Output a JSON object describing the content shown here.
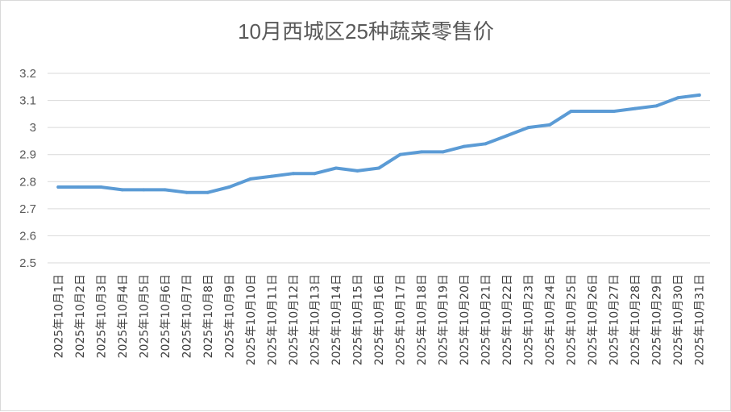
{
  "chart_data": {
    "type": "line",
    "title": "10月西城区25种蔬菜零售价",
    "xlabel": "",
    "ylabel": "",
    "ylim": [
      2.5,
      3.2
    ],
    "yticks": [
      "2.5",
      "2.6",
      "2.7",
      "2.8",
      "2.9",
      "3",
      "3.1",
      "3.2"
    ],
    "grid": true,
    "legend": "none",
    "categories": [
      "2025年10月1日",
      "2025年10月2日",
      "2025年10月3日",
      "2025年10月4日",
      "2025年10月5日",
      "2025年10月6日",
      "2025年10月7日",
      "2025年10月8日",
      "2025年10月9日",
      "2025年10月10日",
      "2025年10月11日",
      "2025年10月12日",
      "2025年10月13日",
      "2025年10月14日",
      "2025年10月15日",
      "2025年10月16日",
      "2025年10月17日",
      "2025年10月18日",
      "2025年10月19日",
      "2025年10月20日",
      "2025年10月21日",
      "2025年10月22日",
      "2025年10月23日",
      "2025年10月24日",
      "2025年10月25日",
      "2025年10月26日",
      "2025年10月27日",
      "2025年10月28日",
      "2025年10月29日",
      "2025年10月30日",
      "2025年10月31日"
    ],
    "series": [
      {
        "color": "#5b9bd5",
        "values": [
          2.78,
          2.78,
          2.78,
          2.77,
          2.77,
          2.77,
          2.76,
          2.76,
          2.78,
          2.81,
          2.82,
          2.83,
          2.83,
          2.85,
          2.84,
          2.85,
          2.9,
          2.91,
          2.91,
          2.93,
          2.94,
          2.97,
          3.0,
          3.01,
          3.06,
          3.06,
          3.06,
          3.07,
          3.08,
          3.11,
          3.12
        ]
      }
    ]
  }
}
